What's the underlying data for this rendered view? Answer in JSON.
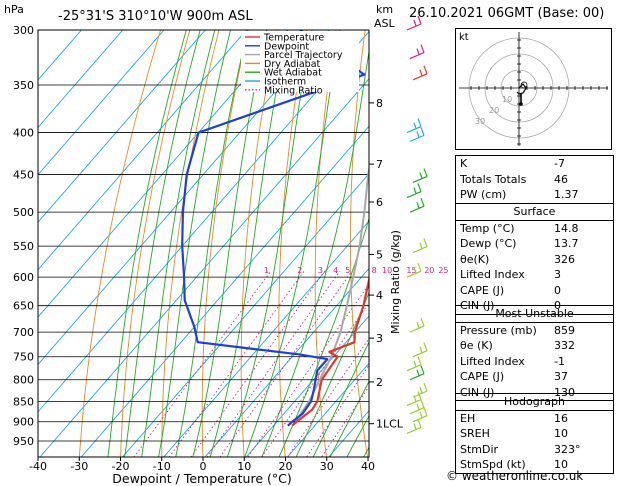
{
  "header": {
    "hpa_label": "hPa",
    "location": "-25°31'S 310°10'W 900m ASL",
    "km_label": "km",
    "asl_label": "ASL",
    "datetime": "26.10.2021 06GMT (Base: 00)"
  },
  "chart_data": {
    "type": "line",
    "xlabel": "Dewpoint / Temperature (°C)",
    "ylabel_right": "Mixing Ratio (g/kg)",
    "x_ticks": [
      -40,
      -30,
      -20,
      -10,
      0,
      10,
      20,
      30,
      40
    ],
    "p_ticks": [
      300,
      350,
      400,
      450,
      500,
      550,
      600,
      650,
      700,
      750,
      800,
      850,
      900,
      950
    ],
    "km_ticks": [
      {
        "label": "8",
        "p": 368
      },
      {
        "label": "7",
        "p": 437
      },
      {
        "label": "6",
        "p": 486
      },
      {
        "label": "5",
        "p": 563
      },
      {
        "label": "4",
        "p": 631
      },
      {
        "label": "3",
        "p": 712
      },
      {
        "label": "2",
        "p": 805
      },
      {
        "label": "1LCL",
        "p": 905
      }
    ],
    "mixing_ratio_labels": [
      "1",
      "2",
      "3",
      "4",
      "5",
      "8",
      "10",
      "15",
      "20",
      "25"
    ],
    "legend": [
      "Temperature",
      "Dewpoint",
      "Parcel Trajectory",
      "Dry Adiabat",
      "Wet Adiabat",
      "Isotherm",
      "Mixing Ratio"
    ],
    "colors": {
      "temperature": "#e8342a",
      "dewpoint": "#1f3fd6",
      "parcel": "#a8a8a8",
      "dry_adiabat": "#e88a2a",
      "wet_adiabat": "#22aa22",
      "isotherm": "#22a8e6",
      "mixing_ratio": "#e01e8c",
      "wind": "#9acd32"
    },
    "series": [
      {
        "name": "Temperature",
        "points": [
          [
            300,
            -39
          ],
          [
            350,
            -31
          ],
          [
            400,
            -23
          ],
          [
            450,
            -15.5
          ],
          [
            500,
            -9.5
          ],
          [
            550,
            -3
          ],
          [
            600,
            2
          ],
          [
            650,
            6.5
          ],
          [
            700,
            10
          ],
          [
            720,
            12
          ],
          [
            740,
            8
          ],
          [
            750,
            11
          ],
          [
            800,
            12
          ],
          [
            850,
            15.5
          ],
          [
            870,
            16
          ],
          [
            900,
            14.8
          ],
          [
            910,
            14.5
          ]
        ]
      },
      {
        "name": "Dewpoint",
        "points": [
          [
            300,
            -67
          ],
          [
            340,
            -42
          ],
          [
            400,
            -70
          ],
          [
            450,
            -64
          ],
          [
            500,
            -57
          ],
          [
            550,
            -50
          ],
          [
            600,
            -43
          ],
          [
            640,
            -38
          ],
          [
            690,
            -30
          ],
          [
            720,
            -26
          ],
          [
            745,
            1
          ],
          [
            755,
            9
          ],
          [
            780,
            9
          ],
          [
            820,
            12
          ],
          [
            850,
            14
          ],
          [
            880,
            14.5
          ],
          [
            900,
            13.7
          ],
          [
            910,
            13.5
          ]
        ]
      },
      {
        "name": "Parcel Trajectory",
        "points": [
          [
            300,
            -44
          ],
          [
            350,
            -35
          ],
          [
            400,
            -27
          ],
          [
            450,
            -20
          ],
          [
            500,
            -13
          ],
          [
            550,
            -7
          ],
          [
            600,
            -2
          ],
          [
            650,
            2.5
          ],
          [
            700,
            6.5
          ],
          [
            750,
            9.5
          ],
          [
            800,
            11.5
          ],
          [
            850,
            13.5
          ],
          [
            900,
            14.5
          ]
        ]
      }
    ],
    "wind_barbs": [
      {
        "p": 300,
        "color": "#e01e8c"
      },
      {
        "p": 325,
        "color": "#e01e8c"
      },
      {
        "p": 345,
        "color": "#e8342a"
      },
      {
        "p": 400,
        "color": "#22a8e6"
      },
      {
        "p": 410,
        "color": "#22a8e6"
      },
      {
        "p": 460,
        "color": "#22aa22"
      },
      {
        "p": 480,
        "color": "#22aa22"
      },
      {
        "p": 500,
        "color": "#22aa22"
      },
      {
        "p": 560,
        "color": "#9acd32"
      },
      {
        "p": 600,
        "color": "#9acd32"
      },
      {
        "p": 700,
        "color": "#9acd32"
      },
      {
        "p": 750,
        "color": "#9acd32"
      },
      {
        "p": 780,
        "color": "#9acd32"
      },
      {
        "p": 800,
        "color": "#22aa22"
      },
      {
        "p": 840,
        "color": "#9acd32"
      },
      {
        "p": 860,
        "color": "#9acd32"
      },
      {
        "p": 880,
        "color": "#9acd32"
      },
      {
        "p": 900,
        "color": "#9acd32"
      },
      {
        "p": 930,
        "color": "#9acd32"
      }
    ]
  },
  "hodograph": {
    "label": "kt",
    "ring_labels": [
      "10",
      "20",
      "30"
    ]
  },
  "indices": [
    {
      "label": "K",
      "value": "-7"
    },
    {
      "label": "Totals Totals",
      "value": "46"
    },
    {
      "label": "PW (cm)",
      "value": "1.37"
    }
  ],
  "surface": {
    "title": "Surface",
    "rows": [
      {
        "label": "Temp (°C)",
        "value": "14.8"
      },
      {
        "label": "Dewp (°C)",
        "value": "13.7"
      },
      {
        "label": "θe(K)",
        "value": "326"
      },
      {
        "label": "Lifted Index",
        "value": "3"
      },
      {
        "label": "CAPE (J)",
        "value": "0"
      },
      {
        "label": "CIN (J)",
        "value": "0"
      }
    ]
  },
  "most_unstable": {
    "title": "Most Unstable",
    "rows": [
      {
        "label": "Pressure (mb)",
        "value": "859"
      },
      {
        "label": "θe (K)",
        "value": "332"
      },
      {
        "label": "Lifted Index",
        "value": "-1"
      },
      {
        "label": "CAPE (J)",
        "value": "37"
      },
      {
        "label": "CIN (J)",
        "value": "130"
      }
    ]
  },
  "hodo_table": {
    "title": "Hodograph",
    "rows": [
      {
        "label": "EH",
        "value": "16"
      },
      {
        "label": "SREH",
        "value": "10"
      },
      {
        "label": "StmDir",
        "value": "323°"
      },
      {
        "label": "StmSpd (kt)",
        "value": "10"
      }
    ]
  },
  "footer": "© weatheronline.co.uk"
}
